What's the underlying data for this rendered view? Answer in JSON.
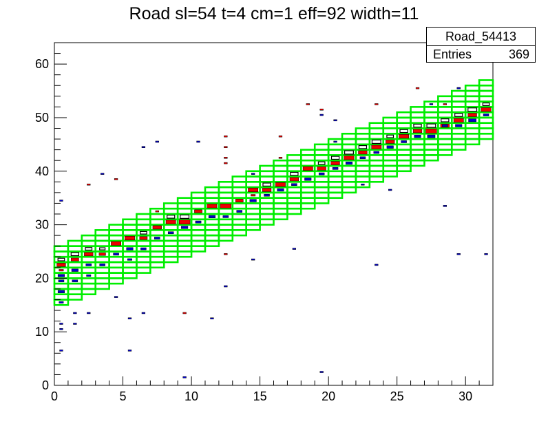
{
  "title": "Road sl=54 t=4 cm=1 eff=92 width=11",
  "stats": {
    "name": "Road_54413",
    "entries_label": "Entries",
    "entries_value": "369"
  },
  "chart_data": {
    "type": "heatmap",
    "title": "Road sl=54 t=4 cm=1 eff=92 width=11",
    "xlabel": "",
    "ylabel": "",
    "xlim": [
      0,
      32
    ],
    "ylim": [
      0,
      64
    ],
    "x_ticks": [
      "0",
      "5",
      "10",
      "15",
      "20",
      "25",
      "30"
    ],
    "y_ticks": [
      "0",
      "10",
      "20",
      "30",
      "40",
      "50",
      "60"
    ],
    "road": {
      "color": "#00ee00",
      "start_center": 20.5,
      "slope": 1.0,
      "half_width": 5.5
    },
    "colors": {
      "hit": "#ee0000",
      "pattern": "#0000cc",
      "box": "#000000",
      "road": "#00ee00"
    },
    "series": [
      {
        "kind": "box",
        "color": "#000000",
        "points": [
          [
            0.5,
            23.5,
            0.6
          ],
          [
            1.5,
            24.5,
            0.7
          ],
          [
            2.5,
            25.5,
            0.6
          ],
          [
            3.5,
            25.5,
            0.5
          ],
          [
            4.5,
            26.5,
            0.6
          ],
          [
            5.5,
            27.5,
            0.8
          ],
          [
            6.5,
            28.5,
            0.6
          ],
          [
            7.5,
            29.5,
            0.7
          ],
          [
            8.5,
            31.5,
            0.7
          ],
          [
            9.5,
            31.5,
            0.8
          ],
          [
            10.5,
            32.5,
            0.6
          ],
          [
            11.5,
            33.5,
            0.7
          ],
          [
            12.5,
            33.5,
            0.8
          ],
          [
            13.5,
            34.5,
            0.6
          ],
          [
            14.5,
            36.5,
            0.8
          ],
          [
            15.5,
            37.5,
            0.7
          ],
          [
            16.5,
            37.5,
            0.8
          ],
          [
            17.5,
            39.5,
            0.7
          ],
          [
            18.5,
            40.5,
            0.7
          ],
          [
            19.5,
            41.5,
            0.6
          ],
          [
            20.5,
            42.5,
            0.7
          ],
          [
            21.5,
            43.5,
            0.8
          ],
          [
            22.5,
            44.5,
            0.7
          ],
          [
            23.5,
            45.5,
            0.8
          ],
          [
            24.5,
            46.5,
            0.6
          ],
          [
            25.5,
            47.5,
            0.7
          ],
          [
            26.5,
            48.5,
            0.7
          ],
          [
            27.5,
            48.5,
            0.8
          ],
          [
            28.5,
            49.5,
            0.7
          ],
          [
            29.5,
            50.5,
            0.7
          ],
          [
            30.5,
            51.5,
            0.8
          ],
          [
            31.5,
            52.5,
            0.6
          ]
        ]
      },
      {
        "kind": "hit",
        "color": "#ee0000",
        "points": [
          [
            0.5,
            22.5,
            0.8
          ],
          [
            1.5,
            23.5,
            0.7
          ],
          [
            2.5,
            24.5,
            0.8
          ],
          [
            3.5,
            24.5,
            0.6
          ],
          [
            4.5,
            26.5,
            0.9
          ],
          [
            5.5,
            27.5,
            0.9
          ],
          [
            6.5,
            27.5,
            0.7
          ],
          [
            7.5,
            29.5,
            0.8
          ],
          [
            8.5,
            30.5,
            0.9
          ],
          [
            9.5,
            30.5,
            1.0
          ],
          [
            10.5,
            32.5,
            0.7
          ],
          [
            11.5,
            33.5,
            0.9
          ],
          [
            12.5,
            33.5,
            1.0
          ],
          [
            13.5,
            34.5,
            0.7
          ],
          [
            14.5,
            36.5,
            0.9
          ],
          [
            15.5,
            36.5,
            0.8
          ],
          [
            16.5,
            37.5,
            0.9
          ],
          [
            17.5,
            38.5,
            0.8
          ],
          [
            18.5,
            40.5,
            0.9
          ],
          [
            19.5,
            40.5,
            0.8
          ],
          [
            20.5,
            41.5,
            0.8
          ],
          [
            21.5,
            42.5,
            0.9
          ],
          [
            22.5,
            43.5,
            0.8
          ],
          [
            23.5,
            44.5,
            0.9
          ],
          [
            24.5,
            45.5,
            0.8
          ],
          [
            25.5,
            46.5,
            0.9
          ],
          [
            26.5,
            47.5,
            0.8
          ],
          [
            27.5,
            47.5,
            1.0
          ],
          [
            28.5,
            48.5,
            0.8
          ],
          [
            29.5,
            49.5,
            0.9
          ],
          [
            30.5,
            50.5,
            0.8
          ],
          [
            31.5,
            51.5,
            0.9
          ],
          [
            10.5,
            30.5,
            0.5
          ],
          [
            14.5,
            35.5,
            0.4
          ],
          [
            21.5,
            41.5,
            0.4
          ],
          [
            26.5,
            46.5,
            0.4
          ],
          [
            0.5,
            21.5,
            0.4
          ],
          [
            23.5,
            43.5,
            0.4
          ],
          [
            9.5,
            13.5,
            0.3
          ],
          [
            4.5,
            38.5,
            0.3
          ],
          [
            12.5,
            44.5,
            0.3
          ],
          [
            12.5,
            46.5,
            0.3
          ],
          [
            12.5,
            42.5,
            0.3
          ],
          [
            12.5,
            41.5,
            0.3
          ],
          [
            16.5,
            46.5,
            0.3
          ],
          [
            18.5,
            52.5,
            0.3
          ],
          [
            19.5,
            51.5,
            0.3
          ],
          [
            23.5,
            52.5,
            0.3
          ],
          [
            26.5,
            55.5,
            0.3
          ],
          [
            29.5,
            55.5,
            0.3
          ],
          [
            2.5,
            37.5,
            0.3
          ],
          [
            7.5,
            32.5,
            0.3
          ],
          [
            12.5,
            24.5,
            0.3
          ],
          [
            16.5,
            42.5,
            0.3
          ],
          [
            24.5,
            44.5,
            0.3
          ],
          [
            28.5,
            52.5,
            0.3
          ],
          [
            30.5,
            49.5,
            0.3
          ]
        ]
      },
      {
        "kind": "pattern",
        "color": "#0000cc",
        "points": [
          [
            0.5,
            20.5,
            0.6
          ],
          [
            0.5,
            19.5,
            0.5
          ],
          [
            0.5,
            17.5,
            0.6
          ],
          [
            0.5,
            15.5,
            0.4
          ],
          [
            1.5,
            21.5,
            0.6
          ],
          [
            1.5,
            19.5,
            0.5
          ],
          [
            2.5,
            22.5,
            0.5
          ],
          [
            2.5,
            20.5,
            0.4
          ],
          [
            3.5,
            22.5,
            0.5
          ],
          [
            4.5,
            24.5,
            0.5
          ],
          [
            5.5,
            25.5,
            0.6
          ],
          [
            5.5,
            23.5,
            0.4
          ],
          [
            6.5,
            25.5,
            0.5
          ],
          [
            7.5,
            27.5,
            0.5
          ],
          [
            8.5,
            28.5,
            0.5
          ],
          [
            9.5,
            29.5,
            0.6
          ],
          [
            10.5,
            30.5,
            0.5
          ],
          [
            11.5,
            31.5,
            0.6
          ],
          [
            12.5,
            31.5,
            0.5
          ],
          [
            13.5,
            32.5,
            0.5
          ],
          [
            14.5,
            34.5,
            0.6
          ],
          [
            15.5,
            35.5,
            0.5
          ],
          [
            16.5,
            36.5,
            0.6
          ],
          [
            17.5,
            37.5,
            0.5
          ],
          [
            18.5,
            38.5,
            0.6
          ],
          [
            19.5,
            39.5,
            0.5
          ],
          [
            20.5,
            40.5,
            0.5
          ],
          [
            21.5,
            41.5,
            0.6
          ],
          [
            22.5,
            42.5,
            0.5
          ],
          [
            23.5,
            43.5,
            0.5
          ],
          [
            24.5,
            44.5,
            0.6
          ],
          [
            25.5,
            45.5,
            0.5
          ],
          [
            26.5,
            46.5,
            0.6
          ],
          [
            27.5,
            46.5,
            0.7
          ],
          [
            28.5,
            48.5,
            0.5
          ],
          [
            29.5,
            48.5,
            0.6
          ],
          [
            30.5,
            49.5,
            0.7
          ],
          [
            31.5,
            50.5,
            0.5
          ],
          [
            0.5,
            34.5,
            0.3
          ],
          [
            0.5,
            10.5,
            0.3
          ],
          [
            0.5,
            6.5,
            0.3
          ],
          [
            0.5,
            11.5,
            0.3
          ],
          [
            1.5,
            11.5,
            0.3
          ],
          [
            1.5,
            13.5,
            0.3
          ],
          [
            2.5,
            13.5,
            0.3
          ],
          [
            3.5,
            39.5,
            0.3
          ],
          [
            4.5,
            16.5,
            0.3
          ],
          [
            5.5,
            12.5,
            0.3
          ],
          [
            5.5,
            6.5,
            0.3
          ],
          [
            6.5,
            13.5,
            0.3
          ],
          [
            6.5,
            44.5,
            0.3
          ],
          [
            7.5,
            45.5,
            0.3
          ],
          [
            9.5,
            1.5,
            0.3
          ],
          [
            10.5,
            45.5,
            0.3
          ],
          [
            11.5,
            12.5,
            0.3
          ],
          [
            12.5,
            18.5,
            0.3
          ],
          [
            14.5,
            23.5,
            0.3
          ],
          [
            14.5,
            39.5,
            0.3
          ],
          [
            17.5,
            25.5,
            0.3
          ],
          [
            19.5,
            2.5,
            0.3
          ],
          [
            19.5,
            50.5,
            0.3
          ],
          [
            20.5,
            49.5,
            0.3
          ],
          [
            23.5,
            22.5,
            0.3
          ],
          [
            28.5,
            33.5,
            0.3
          ],
          [
            29.5,
            55.5,
            0.3
          ],
          [
            29.5,
            24.5,
            0.3
          ],
          [
            31.5,
            24.5,
            0.3
          ],
          [
            22.5,
            37.5,
            0.3
          ],
          [
            24.5,
            36.5,
            0.3
          ],
          [
            20.5,
            45.5,
            0.3
          ],
          [
            27.5,
            52.5,
            0.3
          ]
        ]
      }
    ]
  }
}
